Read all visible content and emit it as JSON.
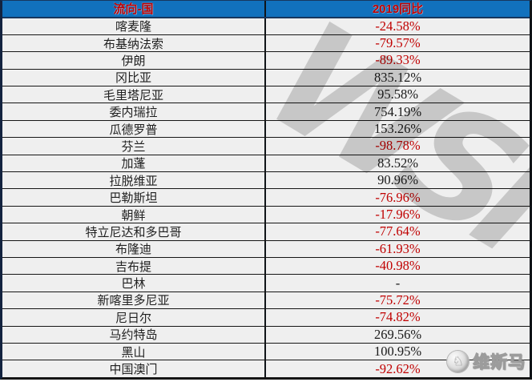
{
  "chart_data": {
    "type": "table",
    "columns": [
      "流向-国",
      "2019同比"
    ],
    "rows": [
      {
        "country": "喀麦隆",
        "value": "-24.58%",
        "negative": true
      },
      {
        "country": "布基纳法索",
        "value": "-79.57%",
        "negative": true
      },
      {
        "country": "伊朗",
        "value": "-89.33%",
        "negative": true
      },
      {
        "country": "冈比亚",
        "value": "835.12%",
        "negative": false
      },
      {
        "country": "毛里塔尼亚",
        "value": "95.58%",
        "negative": false
      },
      {
        "country": "委内瑞拉",
        "value": "754.19%",
        "negative": false
      },
      {
        "country": "瓜德罗普",
        "value": "153.26%",
        "negative": false
      },
      {
        "country": "芬兰",
        "value": "-98.78%",
        "negative": true
      },
      {
        "country": "加蓬",
        "value": "83.52%",
        "negative": false
      },
      {
        "country": "拉脱维亚",
        "value": "90.96%",
        "negative": false
      },
      {
        "country": "巴勒斯坦",
        "value": "-76.96%",
        "negative": true
      },
      {
        "country": "朝鲜",
        "value": "-17.96%",
        "negative": true
      },
      {
        "country": "特立尼达和多巴哥",
        "value": "-77.64%",
        "negative": true
      },
      {
        "country": "布隆迪",
        "value": "-61.93%",
        "negative": true
      },
      {
        "country": "吉布提",
        "value": "-40.98%",
        "negative": true
      },
      {
        "country": "巴林",
        "value": "-",
        "negative": false
      },
      {
        "country": "新喀里多尼亚",
        "value": "-75.72%",
        "negative": true
      },
      {
        "country": "尼日尔",
        "value": "-74.82%",
        "negative": true
      },
      {
        "country": "马约特岛",
        "value": "269.56%",
        "negative": false
      },
      {
        "country": "黑山",
        "value": "100.95%",
        "negative": false
      },
      {
        "country": "中国澳门",
        "value": "-92.62%",
        "negative": true
      }
    ]
  },
  "watermark": {
    "text": "WSM"
  },
  "logo": {
    "text": "维斯马",
    "icon": "circular-emblem"
  },
  "colors": {
    "header_bg": "#1171BD",
    "header_text": "#C00000",
    "negative": "#C00000",
    "positive": "#1A1A1A",
    "row_bg": "#EFEFEF",
    "border": "#141414",
    "watermark": "#D5D5D5"
  }
}
